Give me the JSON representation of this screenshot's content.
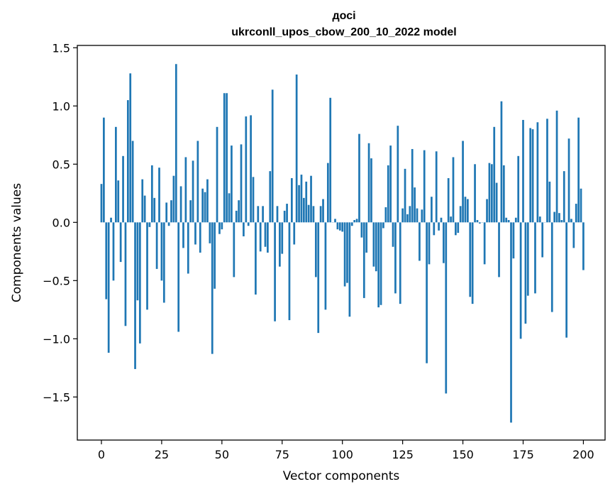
{
  "chart_data": {
    "type": "bar",
    "title_line1": "досі",
    "title_line2": "ukrconll_upos_cbow_200_10_2022 model",
    "xlabel": "Vector components",
    "ylabel": "Components values",
    "xlim": [
      -10,
      209
    ],
    "ylim": [
      -1.87,
      1.52
    ],
    "xticks": [
      "0",
      "25",
      "50",
      "75",
      "100",
      "125",
      "150",
      "175",
      "200"
    ],
    "xtick_values": [
      0,
      25,
      50,
      75,
      100,
      125,
      150,
      175,
      200
    ],
    "yticks": [
      "−1.5",
      "−1.0",
      "−0.5",
      "0.0",
      "0.5",
      "1.0",
      "1.5"
    ],
    "ytick_values": [
      -1.5,
      -1.0,
      -0.5,
      0.0,
      0.5,
      1.0,
      1.5
    ],
    "bar_color": "#1f77b4",
    "values": [
      0.33,
      0.9,
      -0.66,
      -1.12,
      0.04,
      -0.5,
      0.82,
      0.36,
      -0.34,
      0.57,
      -0.89,
      1.05,
      1.28,
      0.7,
      -1.26,
      -0.67,
      -1.04,
      0.37,
      0.23,
      -0.75,
      -0.04,
      0.49,
      0.21,
      -0.4,
      0.47,
      -0.5,
      -0.69,
      0.17,
      -0.03,
      0.19,
      0.4,
      1.36,
      -0.94,
      0.31,
      -0.22,
      0.56,
      -0.44,
      0.19,
      0.53,
      -0.19,
      0.7,
      -0.26,
      0.29,
      0.26,
      0.37,
      -0.18,
      -1.13,
      -0.57,
      0.82,
      -0.1,
      -0.06,
      1.11,
      1.11,
      0.25,
      0.66,
      -0.47,
      0.1,
      0.19,
      0.67,
      -0.12,
      0.91,
      -0.03,
      0.92,
      0.39,
      -0.62,
      0.14,
      -0.25,
      0.14,
      -0.21,
      -0.26,
      0.44,
      1.14,
      -0.85,
      0.14,
      -0.38,
      -0.27,
      0.1,
      0.16,
      -0.84,
      0.38,
      -0.19,
      1.27,
      0.32,
      0.41,
      0.21,
      0.35,
      0.15,
      0.4,
      0.14,
      -0.47,
      -0.95,
      0.14,
      0.2,
      -0.75,
      0.51,
      1.07,
      0.0,
      0.03,
      -0.06,
      -0.07,
      -0.08,
      -0.55,
      -0.52,
      -0.81,
      -0.03,
      0.02,
      0.03,
      0.76,
      -0.13,
      -0.65,
      -0.26,
      0.68,
      0.55,
      -0.38,
      -0.42,
      -0.73,
      -0.71,
      -0.05,
      0.13,
      0.49,
      0.66,
      -0.21,
      -0.61,
      0.83,
      -0.7,
      0.12,
      0.46,
      0.07,
      0.14,
      0.63,
      0.3,
      0.12,
      -0.33,
      0.11,
      0.62,
      -1.21,
      -0.36,
      0.22,
      -0.11,
      0.61,
      -0.07,
      0.04,
      -0.35,
      -1.47,
      0.38,
      0.05,
      0.56,
      -0.11,
      -0.09,
      0.14,
      0.7,
      0.22,
      0.2,
      -0.64,
      -0.7,
      0.5,
      0.02,
      -0.01,
      0.0,
      -0.36,
      0.2,
      0.51,
      0.5,
      0.82,
      0.34,
      -0.47,
      1.04,
      0.49,
      0.04,
      0.02,
      -1.72,
      -0.31,
      0.04,
      0.57,
      -1.0,
      0.88,
      -0.87,
      -0.63,
      0.81,
      0.8,
      -0.61,
      0.86,
      0.05,
      -0.3,
      0.0,
      0.89,
      0.35,
      -0.77,
      0.09,
      0.96,
      0.08,
      0.02,
      0.44,
      -0.99,
      0.72,
      0.03,
      -0.22,
      0.16,
      0.9,
      0.29,
      -0.41
    ]
  }
}
